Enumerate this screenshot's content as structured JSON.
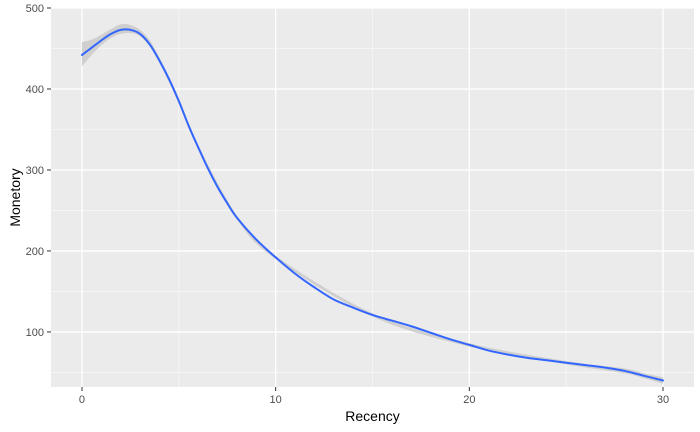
{
  "chart_data": {
    "type": "line",
    "title": "",
    "xlabel": "Recency",
    "ylabel": "Monetory",
    "xlim": [
      -1.6,
      31.6
    ],
    "ylim": [
      32,
      500
    ],
    "grid": true,
    "x_ticks": [
      0,
      10,
      20,
      30
    ],
    "y_ticks": [
      100,
      200,
      300,
      400,
      500
    ],
    "x_tick_labels": [
      "0",
      "10",
      "20",
      "30"
    ],
    "y_tick_labels": [
      "100",
      "200",
      "300",
      "400",
      "500"
    ],
    "series": [
      {
        "color": "#3366ff",
        "x": [
          0,
          0.5,
          1,
          1.5,
          2,
          2.5,
          3,
          3.5,
          4,
          4.5,
          5,
          5.5,
          6,
          6.5,
          7,
          7.5,
          8,
          9,
          10,
          11,
          12,
          13,
          14,
          15,
          16,
          17,
          18,
          19,
          20,
          21,
          22,
          23,
          24,
          25,
          26,
          27,
          28,
          29,
          30
        ],
        "y": [
          442,
          451,
          460,
          468,
          473,
          473,
          468,
          455,
          435,
          412,
          385,
          355,
          328,
          302,
          279,
          259,
          241,
          214,
          192,
          172,
          155,
          140,
          130,
          121,
          114,
          107,
          99,
          91,
          84,
          77,
          72,
          68,
          65,
          62,
          59,
          56,
          52,
          46,
          40
        ]
      }
    ],
    "confidence_band": {
      "color": "#cccccc",
      "x": [
        0,
        0.5,
        1,
        1.5,
        2,
        2.5,
        3,
        3.5,
        4,
        5,
        6,
        8,
        10,
        15,
        20,
        25,
        28,
        29,
        30
      ],
      "lower": [
        428,
        442,
        454,
        463,
        468,
        469,
        465,
        452,
        432,
        382,
        325,
        239,
        190,
        119,
        82,
        60,
        49,
        43,
        36
      ],
      "upper": [
        458,
        461,
        467,
        474,
        480,
        479,
        473,
        460,
        439,
        389,
        331,
        244,
        194,
        123,
        86,
        64,
        55,
        49,
        44
      ]
    }
  }
}
